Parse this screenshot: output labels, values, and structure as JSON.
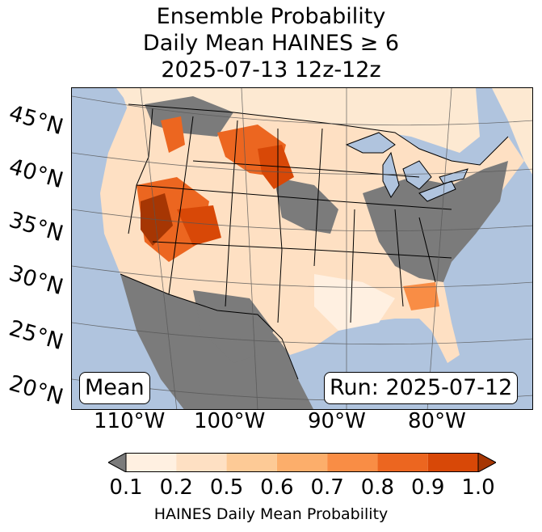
{
  "title": {
    "line1": "Ensemble Probability",
    "line2": "Daily Mean HAINES ≥ 6",
    "line3": "2025-07-13 12z-12z"
  },
  "map": {
    "lat_labels": [
      "45°N",
      "40°N",
      "35°N",
      "30°N",
      "25°N",
      "20°N"
    ],
    "lon_labels": [
      "110°W",
      "100°W",
      "90°W",
      "80°W"
    ],
    "mean_label": "Mean",
    "run_label": "Run: 2025-07-12",
    "colors": {
      "ocean": "#b0c4de",
      "land_masked": "#7b7b7b",
      "grid": "#555555",
      "border": "#000000"
    }
  },
  "colorbar": {
    "ticks": [
      "0.1",
      "0.2",
      "0.5",
      "0.6",
      "0.7",
      "0.8",
      "0.9",
      "1.0"
    ],
    "colors": [
      "#fff0e1",
      "#fee0c3",
      "#fdca96",
      "#fcae6b",
      "#f98d45",
      "#ec6620",
      "#d84807"
    ],
    "under_color": "#7b7b7b",
    "over_color": "#a63603",
    "label": "HAINES Daily Mean Probability"
  }
}
